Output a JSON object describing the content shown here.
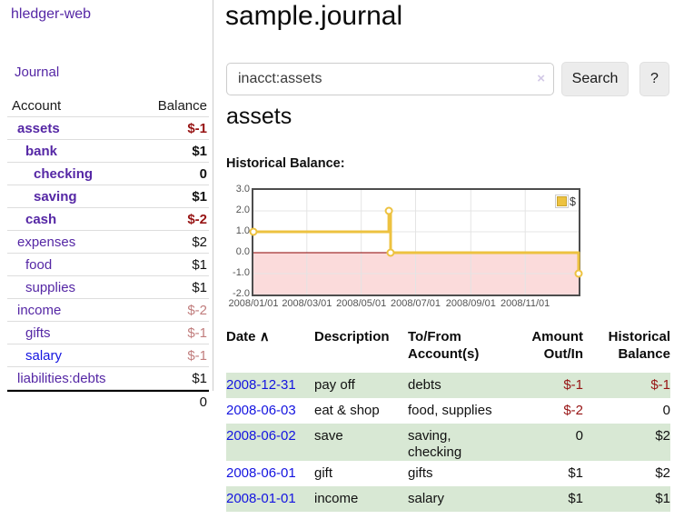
{
  "app": {
    "brand": "hledger-web",
    "nav_journal": "Journal"
  },
  "sidebar": {
    "headers": {
      "account": "Account",
      "balance": "Balance"
    },
    "accounts": [
      {
        "name": "assets",
        "level": 1,
        "name_class": "lvl1 bold",
        "balance": "$-1",
        "balance_class": "b neg"
      },
      {
        "name": "bank",
        "level": 2,
        "name_class": "lvl2 bold",
        "balance": "$1",
        "balance_class": "b"
      },
      {
        "name": "checking",
        "level": 3,
        "name_class": "lvl3 bold",
        "balance": "0",
        "balance_class": "b"
      },
      {
        "name": "saving",
        "level": 3,
        "name_class": "lvl3 bold",
        "balance": "$1",
        "balance_class": "b"
      },
      {
        "name": "cash",
        "level": 2,
        "name_class": "lvl2 bold",
        "balance": "$-2",
        "balance_class": "b neg"
      },
      {
        "name": "expenses",
        "level": 1,
        "name_class": "lvl1",
        "balance": "$2",
        "balance_class": ""
      },
      {
        "name": "food",
        "level": 2,
        "name_class": "lvl2",
        "balance": "$1",
        "balance_class": ""
      },
      {
        "name": "supplies",
        "level": 2,
        "name_class": "lvl2",
        "balance": "$1",
        "balance_class": ""
      },
      {
        "name": "income",
        "level": 1,
        "name_class": "lvl1",
        "balance": "$-2",
        "balance_class": "faded"
      },
      {
        "name": "gifts",
        "level": 2,
        "name_class": "lvl2",
        "balance": "$-1",
        "balance_class": "faded"
      },
      {
        "name": "salary",
        "level": 2,
        "name_class": "lvl2 blue",
        "balance": "$-1",
        "balance_class": "faded"
      },
      {
        "name": "liabilities:debts",
        "level": 1,
        "name_class": "lvl1",
        "balance": "$1",
        "balance_class": ""
      }
    ],
    "total": "0"
  },
  "header": {
    "title": "sample.journal"
  },
  "search": {
    "value": "inacct:assets",
    "clear_icon": "×",
    "button_label": "Search",
    "help_label": "?"
  },
  "register": {
    "heading": "assets",
    "headers": {
      "date": "Date",
      "sort_arrow": "∧",
      "description": "Description",
      "accounts": "To/From Account(s)",
      "amount": "Amount Out/In",
      "balance": "Historical Balance"
    },
    "rows": [
      {
        "date": "2008-12-31",
        "description": "pay off",
        "accounts": "debts",
        "amount": "$-1",
        "amount_class": "neg",
        "balance": "$-1",
        "balance_class": "neg"
      },
      {
        "date": "2008-06-03",
        "description": "eat & shop",
        "accounts": "food, supplies",
        "amount": "$-2",
        "amount_class": "neg",
        "balance": "0",
        "balance_class": ""
      },
      {
        "date": "2008-06-02",
        "description": "save",
        "accounts": "saving, checking",
        "amount": "0",
        "amount_class": "",
        "balance": "$2",
        "balance_class": ""
      },
      {
        "date": "2008-06-01",
        "description": "gift",
        "accounts": "gifts",
        "amount": "$1",
        "amount_class": "",
        "balance": "$2",
        "balance_class": ""
      },
      {
        "date": "2008-01-01",
        "description": "income",
        "accounts": "salary",
        "amount": "$1",
        "amount_class": "",
        "balance": "$1",
        "balance_class": ""
      }
    ]
  },
  "chart_data": {
    "type": "line",
    "title": "Historical Balance:",
    "x_range": [
      "2008-01-01",
      "2008-12-31"
    ],
    "ylim": [
      -2,
      3
    ],
    "y_ticks": [
      "3.0",
      "2.0",
      "1.0",
      "0.0",
      "-1.0",
      "-2.0"
    ],
    "x_ticks": [
      {
        "date": "2008-01-01",
        "label": "2008/01/01"
      },
      {
        "date": "2008-03-01",
        "label": "2008/03/01"
      },
      {
        "date": "2008-05-01",
        "label": "2008/05/01"
      },
      {
        "date": "2008-07-01",
        "label": "2008/07/01"
      },
      {
        "date": "2008-09-01",
        "label": "2008/09/01"
      },
      {
        "date": "2008-11-01",
        "label": "2008/11/01"
      }
    ],
    "series": [
      {
        "name": "$",
        "color": "#edc240",
        "step": true,
        "points": [
          {
            "date": "2008-01-01",
            "value": 1
          },
          {
            "date": "2008-06-01",
            "value": 2
          },
          {
            "date": "2008-06-03",
            "value": 0
          },
          {
            "date": "2008-12-31",
            "value": -1
          }
        ]
      }
    ],
    "legend": {
      "label": "$",
      "position": "top-right"
    },
    "grid": true,
    "grid_color": "#e4e4e4",
    "negative_region_color": "#fbdbdb",
    "zero_line_color": "#8b0000",
    "border_color": "#4d4d4d"
  },
  "colors": {
    "link_purple": "#5527a5",
    "link_blue": "#1414e0",
    "negative_red": "#971414",
    "faded_red": "#c17d7d",
    "row_stripe_green": "#d8e8d4",
    "series_gold": "#edc240"
  }
}
